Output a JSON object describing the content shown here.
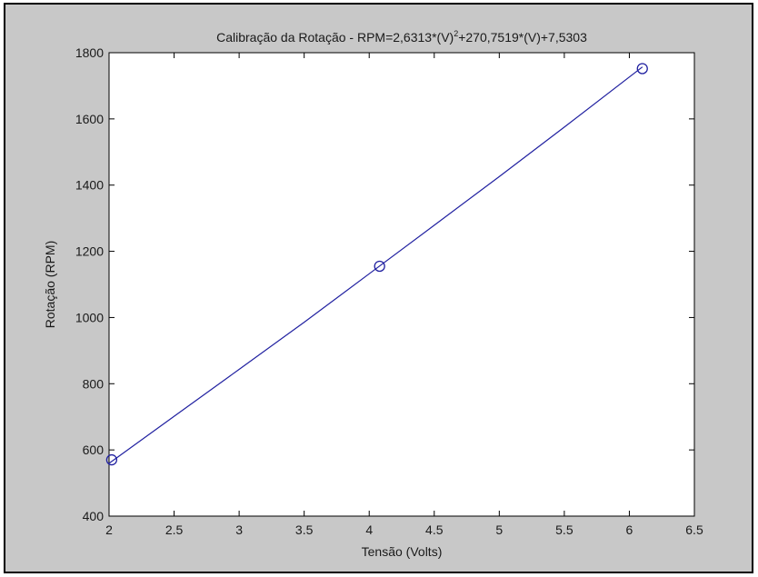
{
  "chart_data": {
    "type": "line",
    "title": "Calibração da Rotação - RPM=2,6313*(V)",
    "title_superscript": "2",
    "title_tail": "+270,7519*(V)+7,5303",
    "xlabel": "Tensão (Volts)",
    "ylabel": "Rotação (RPM)",
    "xlim": [
      2,
      6.5
    ],
    "ylim": [
      400,
      1800
    ],
    "xticks": [
      2,
      2.5,
      3,
      3.5,
      4,
      4.5,
      5,
      5.5,
      6,
      6.5
    ],
    "yticks": [
      400,
      600,
      800,
      1000,
      1200,
      1400,
      1600,
      1800
    ],
    "xtick_labels": [
      "2",
      "2.5",
      "3",
      "3.5",
      "4",
      "4.5",
      "5",
      "5.5",
      "6",
      "6.5"
    ],
    "ytick_labels": [
      "400",
      "600",
      "800",
      "1000",
      "1200",
      "1400",
      "1600",
      "1800"
    ],
    "grid": false,
    "series": [
      {
        "type": "line",
        "color": "#2020a0",
        "x": [
          2.0,
          2.5,
          3.0,
          3.5,
          4.0,
          4.5,
          5.0,
          5.5,
          6.1
        ],
        "y": [
          559.6,
          701.7,
          843.4,
          985.9,
          1132.2,
          1278.6,
          1425.7,
          1575.3,
          1756.8
        ]
      },
      {
        "type": "scatter",
        "marker": "circle",
        "color": "#2020a0",
        "x": [
          2.02,
          4.08,
          6.1
        ],
        "y": [
          570,
          1155,
          1752
        ]
      }
    ]
  }
}
